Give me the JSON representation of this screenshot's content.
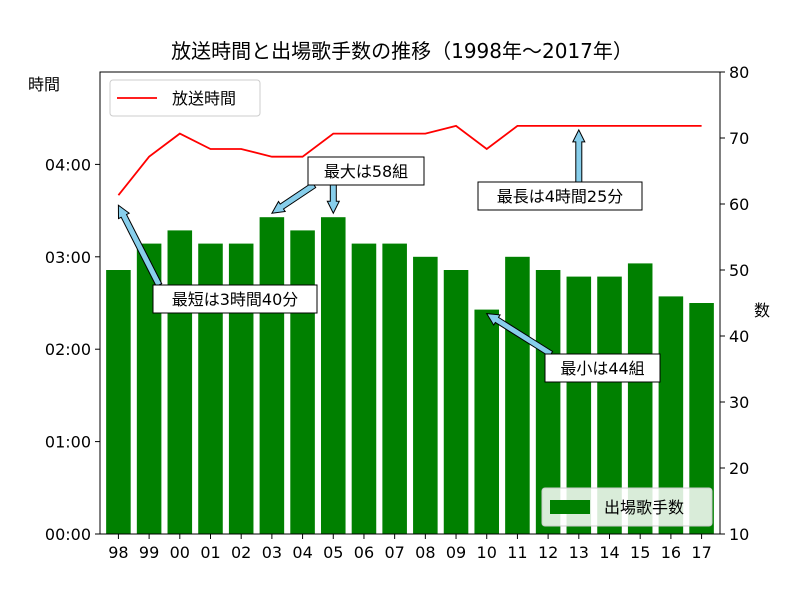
{
  "chart_data": {
    "type": "bar+line",
    "title": "放送時間と出場歌手数の推移（1998年〜2017年）",
    "categories": [
      "98",
      "99",
      "00",
      "01",
      "02",
      "03",
      "04",
      "05",
      "06",
      "07",
      "08",
      "09",
      "10",
      "11",
      "12",
      "13",
      "14",
      "15",
      "16",
      "17"
    ],
    "series": [
      {
        "name": "出場歌手数",
        "type": "bar",
        "axis": "right",
        "color": "#008000",
        "values": [
          50,
          54,
          56,
          54,
          54,
          58,
          56,
          58,
          54,
          54,
          52,
          50,
          44,
          52,
          50,
          49,
          49,
          51,
          46,
          45
        ]
      },
      {
        "name": "放送時間",
        "type": "line",
        "axis": "left",
        "unit": "minutes",
        "color": "#ff0000",
        "values": [
          220,
          245,
          260,
          250,
          250,
          245,
          245,
          260,
          260,
          260,
          260,
          265,
          250,
          265,
          265,
          265,
          265,
          265,
          265,
          265
        ]
      }
    ],
    "left_axis": {
      "label": "時間",
      "ylim": [
        0,
        300
      ],
      "ticks": [
        0,
        60,
        120,
        180,
        240
      ],
      "tick_labels": [
        "00:00",
        "01:00",
        "02:00",
        "03:00",
        "04:00"
      ]
    },
    "right_axis": {
      "label": "数",
      "ylim": [
        10,
        80
      ],
      "ticks": [
        10,
        20,
        30,
        40,
        50,
        60,
        70,
        80
      ],
      "tick_labels": [
        "10",
        "20",
        "30",
        "40",
        "50",
        "60",
        "70",
        "80"
      ]
    },
    "legend_line": {
      "placement": "upper-left",
      "label": "放送時間"
    },
    "legend_bar": {
      "placement": "lower-right",
      "label": "出場歌手数"
    },
    "annotations": [
      {
        "text": "最短は3時間40分",
        "axis": "left",
        "targets": [
          {
            "index": 0,
            "value": 220
          }
        ]
      },
      {
        "text": "最大は58組",
        "axis": "right",
        "targets": [
          {
            "index": 5,
            "value": 58
          },
          {
            "index": 7,
            "value": 58
          }
        ]
      },
      {
        "text": "最長は4時間25分",
        "axis": "left",
        "targets": [
          {
            "index": 15,
            "value": 265
          }
        ]
      },
      {
        "text": "最小は44組",
        "axis": "right",
        "targets": [
          {
            "index": 12,
            "value": 44
          }
        ]
      }
    ]
  }
}
